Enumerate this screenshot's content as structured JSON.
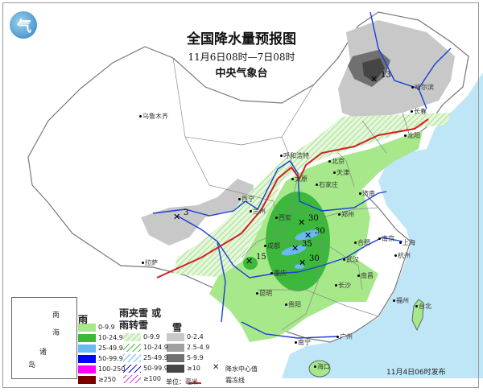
{
  "title": "全国降水量预报图",
  "period": "11月6日08时—7日08时",
  "agency": "中央气象台",
  "issued": "11月4日06时发布",
  "logo_text": "气",
  "colors": {
    "ocean": "#bfe6f7",
    "rain_light": "#a6e88a",
    "rain_moderate": "#3cb83c",
    "rain_heavy": "#6ab9f2",
    "snow_light": "#c8c8c8",
    "snow_moderate": "#a0a0a0",
    "snow_heavy": "#707070",
    "snow_severe": "#454545",
    "frost_line": "#d42020",
    "river": "#1a3fd6"
  },
  "cities": [
    "乌鲁木齐",
    "拉萨",
    "西宁",
    "兰州",
    "成都",
    "重庆",
    "西安",
    "郑州",
    "济南",
    "石家庄",
    "太原",
    "北京",
    "天津",
    "呼和浩特",
    "沈阳",
    "长春",
    "哈尔滨",
    "合肥",
    "南京",
    "上海",
    "杭州",
    "武汉",
    "长沙",
    "南昌",
    "福州",
    "台北",
    "贵阳",
    "昆明",
    "南宁",
    "广州",
    "海口"
  ],
  "precip_centers": [
    "13",
    "3",
    "15",
    "30",
    "30",
    "35",
    "30"
  ],
  "inset": {
    "labels": [
      "南",
      "海",
      "诸",
      "岛"
    ]
  },
  "legend": {
    "rain": {
      "heading": "雨",
      "items": [
        {
          "label": "0-9.9",
          "color": "#a6e88a"
        },
        {
          "label": "10-24.9",
          "color": "#3cb83c"
        },
        {
          "label": "25-49.9",
          "color": "#6ab9f2"
        },
        {
          "label": "50-99.9",
          "color": "#0000ff"
        },
        {
          "label": "100-250",
          "color": "#ff00ff"
        },
        {
          "label": "≥250",
          "color": "#7a0000"
        }
      ]
    },
    "mixed": {
      "heading": "雨夹雪 或雨转雪",
      "items": [
        {
          "label": "0-9.9",
          "color": "#a6e88a"
        },
        {
          "label": "10-24.9",
          "color": "#3cb83c"
        },
        {
          "label": "25-49.9",
          "color": "#6ab9f2"
        },
        {
          "label": "50-99.9",
          "color": "#0000c0"
        },
        {
          "label": "≥100",
          "color": "#cc33cc"
        }
      ]
    },
    "snow": {
      "heading": "雪",
      "items": [
        {
          "label": "0-2.4",
          "color": "#c8c8c8"
        },
        {
          "label": "2.5-4.9",
          "color": "#a0a0a0"
        },
        {
          "label": "5-9.9",
          "color": "#707070"
        },
        {
          "label": "≥10",
          "color": "#454545"
        }
      ]
    },
    "unit": "单位：毫米",
    "center_label": "降水中心值",
    "frost_label": "霜冻线"
  }
}
